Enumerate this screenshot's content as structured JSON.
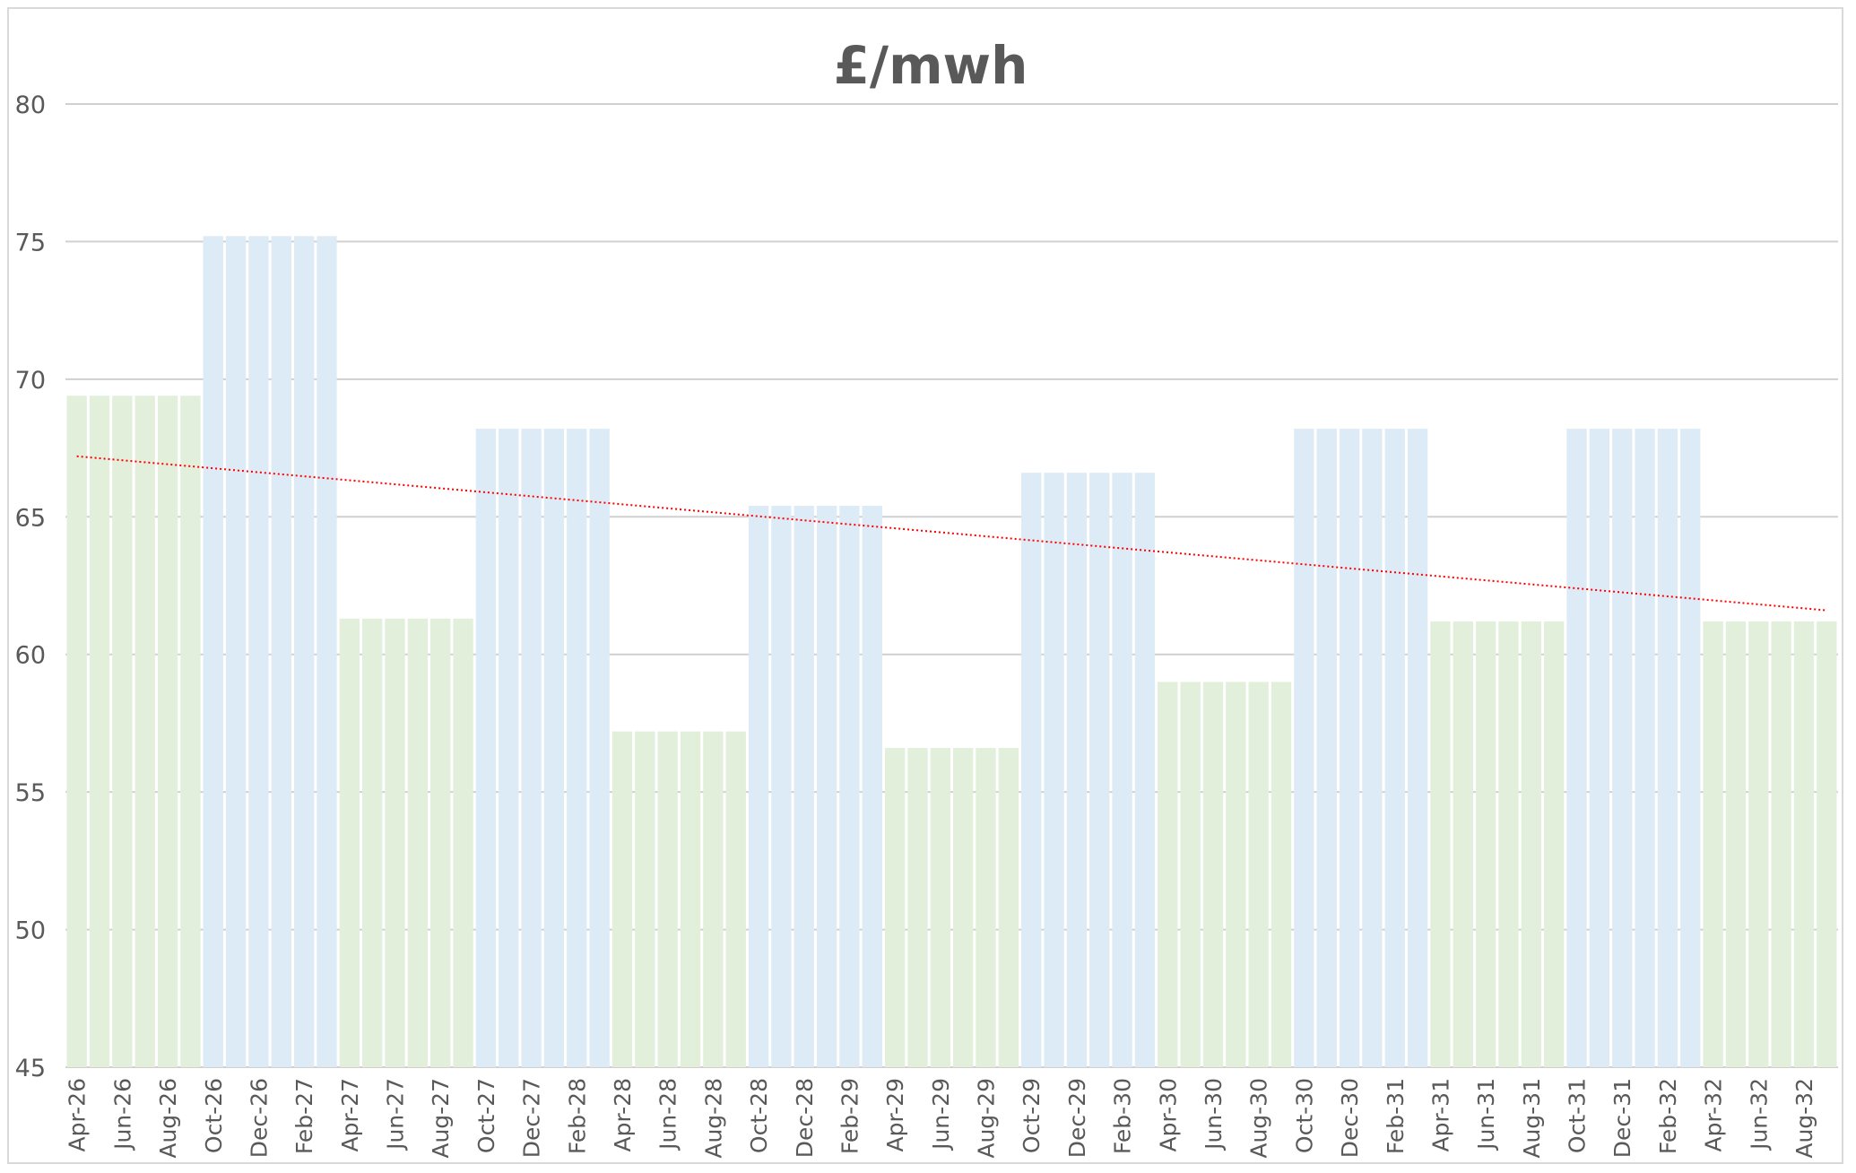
{
  "chart_data": {
    "type": "bar",
    "title": "£/mwh",
    "xlabel": "",
    "ylabel": "",
    "ylim": [
      45,
      80
    ],
    "yticks": [
      "45",
      "50",
      "55",
      "60",
      "65",
      "70",
      "75",
      "80"
    ],
    "grid": true,
    "legend": "none",
    "categories": [
      "Apr-26",
      "May-26",
      "Jun-26",
      "Jul-26",
      "Aug-26",
      "Sep-26",
      "Oct-26",
      "Nov-26",
      "Dec-26",
      "Jan-27",
      "Feb-27",
      "Mar-27",
      "Apr-27",
      "May-27",
      "Jun-27",
      "Jul-27",
      "Aug-27",
      "Sep-27",
      "Oct-27",
      "Nov-27",
      "Dec-27",
      "Jan-28",
      "Feb-28",
      "Mar-28",
      "Apr-28",
      "May-28",
      "Jun-28",
      "Jul-28",
      "Aug-28",
      "Sep-28",
      "Oct-28",
      "Nov-28",
      "Dec-28",
      "Jan-29",
      "Feb-29",
      "Mar-29",
      "Apr-29",
      "May-29",
      "Jun-29",
      "Jul-29",
      "Aug-29",
      "Sep-29",
      "Oct-29",
      "Nov-29",
      "Dec-29",
      "Jan-30",
      "Feb-30",
      "Mar-30",
      "Apr-30",
      "May-30",
      "Jun-30",
      "Jul-30",
      "Aug-30",
      "Sep-30",
      "Oct-30",
      "Nov-30",
      "Dec-30",
      "Jan-31",
      "Feb-31",
      "Mar-31",
      "Apr-31",
      "May-31",
      "Jun-31",
      "Jul-31",
      "Aug-31",
      "Sep-31",
      "Oct-31",
      "Nov-31",
      "Dec-31",
      "Jan-32",
      "Feb-32",
      "Mar-32",
      "Apr-32",
      "May-32",
      "Jun-32",
      "Jul-32",
      "Aug-32",
      "Sep-32"
    ],
    "visible_tick_labels": [
      "Apr-26",
      "Jun-26",
      "Aug-26",
      "Oct-26",
      "Dec-26",
      "Feb-27",
      "Apr-27",
      "Jun-27",
      "Aug-27",
      "Oct-27",
      "Dec-27",
      "Feb-28",
      "Apr-28",
      "Jun-28",
      "Aug-28",
      "Oct-28",
      "Dec-28",
      "Feb-29",
      "Apr-29",
      "Jun-29",
      "Aug-29",
      "Oct-29",
      "Dec-29",
      "Feb-30",
      "Apr-30",
      "Jun-30",
      "Aug-30",
      "Oct-30",
      "Dec-30",
      "Feb-31",
      "Apr-31",
      "Jun-31",
      "Aug-31",
      "Oct-31",
      "Dec-31",
      "Feb-32",
      "Apr-32",
      "Jun-32",
      "Aug-32"
    ],
    "season_values": [
      69.4,
      75.2,
      61.3,
      68.2,
      57.2,
      65.4,
      56.6,
      66.6,
      59.0,
      68.2,
      61.2,
      68.2,
      61.2
    ],
    "season_kinds": [
      "summer",
      "winter",
      "summer",
      "winter",
      "summer",
      "winter",
      "summer",
      "winter",
      "summer",
      "winter",
      "summer",
      "winter",
      "summer"
    ],
    "months_per_season": 6,
    "colors": {
      "summer": "#e2efda",
      "winter": "#ddebf7",
      "trendline": "#ff0000"
    },
    "trendline": {
      "type": "linear",
      "style": "dotted",
      "start": 67.2,
      "end": 61.6
    }
  }
}
